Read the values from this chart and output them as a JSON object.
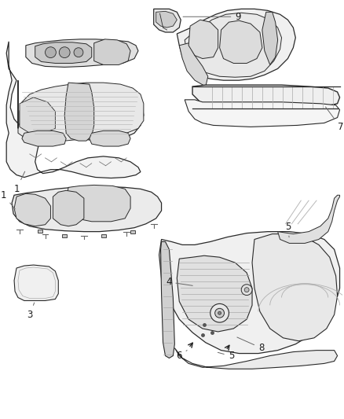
{
  "background_color": "#ffffff",
  "line_color": "#2a2a2a",
  "gray_light": "#cccccc",
  "gray_mid": "#999999",
  "gray_dark": "#666666",
  "figsize": [
    4.38,
    5.33
  ],
  "dpi": 100,
  "label_color": "#1a1a1a",
  "label_fontsize": 8.5
}
